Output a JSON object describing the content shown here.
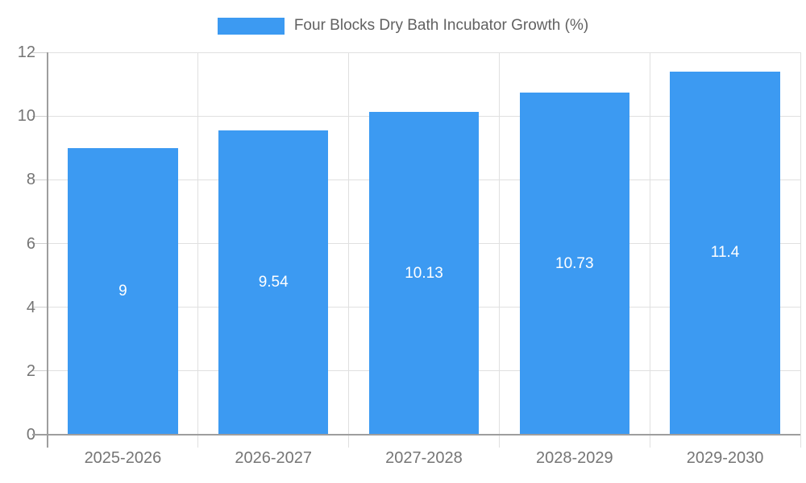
{
  "chart_data": {
    "type": "bar",
    "title": "Four Blocks Dry Bath Incubator Growth (%)",
    "categories": [
      "2025-2026",
      "2026-2027",
      "2027-2028",
      "2028-2029",
      "2029-2030"
    ],
    "values": [
      9,
      9.54,
      10.13,
      10.73,
      11.4
    ],
    "value_labels": [
      "9",
      "9.54",
      "10.13",
      "10.73",
      "11.4"
    ],
    "xlabel": "",
    "ylabel": "",
    "ylim": [
      0,
      12
    ],
    "ytick_step": 2,
    "ytick_labels": [
      "0",
      "2",
      "4",
      "6",
      "8",
      "10",
      "12"
    ],
    "grid": true,
    "legend_position": "top",
    "legend_swatch": "bar-color-rect",
    "colors": {
      "bar": "#3c9af2",
      "grid_line": "#e0e0e0",
      "axis_line": "#9e9e9e",
      "tick_line": "#cfcfcf",
      "axis_label": "#757575",
      "legend_text": "#616161",
      "value_label": "#ffffff",
      "background": "#ffffff"
    }
  }
}
